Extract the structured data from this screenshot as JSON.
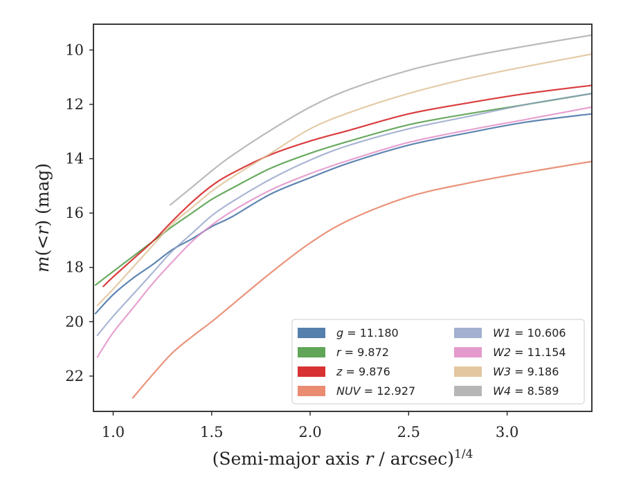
{
  "chart_data": {
    "type": "line",
    "xlabel_main": "(Semi-major axis ",
    "xlabel_var": "r",
    "xlabel_unit": " / arcsec)",
    "xlabel_exp": "1/4",
    "ylabel_pre": "m",
    "ylabel_mid": "(<",
    "ylabel_var": "r",
    "ylabel_post": ") (mag)",
    "xlim": [
      0.9,
      3.43
    ],
    "ylim": [
      23.3,
      9.05
    ],
    "y_inverted": true,
    "x_ticks": [
      1.0,
      1.5,
      2.0,
      2.5,
      3.0
    ],
    "x_tick_labels": [
      "1.0",
      "1.5",
      "2.0",
      "2.5",
      "3.0"
    ],
    "y_ticks": [
      10,
      12,
      14,
      16,
      18,
      20,
      22
    ],
    "y_tick_labels": [
      "10",
      "12",
      "14",
      "16",
      "18",
      "20",
      "22"
    ],
    "grid": false,
    "legend_position": "bottom-right",
    "legend_columns": 2,
    "series": [
      {
        "name": "g",
        "value": "11.180",
        "color": "#4c78a8",
        "line_opacity": 0.9,
        "x": [
          0.91,
          1.0,
          1.1,
          1.2,
          1.3,
          1.4,
          1.5,
          1.6,
          1.8,
          2.0,
          2.2,
          2.5,
          2.8,
          3.1,
          3.43
        ],
        "y": [
          19.7,
          19.0,
          18.4,
          17.9,
          17.35,
          16.95,
          16.5,
          16.15,
          15.3,
          14.7,
          14.15,
          13.5,
          13.05,
          12.65,
          12.35
        ]
      },
      {
        "name": "r",
        "value": "9.872",
        "color": "#59a14f",
        "line_opacity": 0.9,
        "x": [
          0.91,
          1.0,
          1.1,
          1.2,
          1.3,
          1.4,
          1.5,
          1.6,
          1.8,
          2.0,
          2.2,
          2.5,
          2.8,
          3.1,
          3.43
        ],
        "y": [
          18.65,
          18.15,
          17.6,
          17.05,
          16.5,
          16.0,
          15.5,
          15.1,
          14.35,
          13.8,
          13.35,
          12.75,
          12.35,
          12.0,
          11.6
        ]
      },
      {
        "name": "z",
        "value": "9.876",
        "color": "#d62728",
        "line_opacity": 0.9,
        "x": [
          0.95,
          1.0,
          1.1,
          1.2,
          1.3,
          1.4,
          1.5,
          1.6,
          1.8,
          2.0,
          2.2,
          2.5,
          2.8,
          3.1,
          3.43
        ],
        "y": [
          18.7,
          18.35,
          17.7,
          17.05,
          16.3,
          15.6,
          15.0,
          14.55,
          13.85,
          13.35,
          12.95,
          12.35,
          11.95,
          11.6,
          11.3
        ]
      },
      {
        "name": "NUV",
        "value": "12.927",
        "color": "#e8866a",
        "line_opacity": 0.9,
        "x": [
          1.1,
          1.2,
          1.3,
          1.4,
          1.5,
          1.6,
          1.8,
          2.0,
          2.2,
          2.5,
          2.8,
          3.1,
          3.43
        ],
        "y": [
          22.8,
          21.95,
          21.15,
          20.55,
          20.0,
          19.4,
          18.2,
          17.1,
          16.25,
          15.4,
          14.9,
          14.5,
          14.1
        ]
      },
      {
        "name": "W1",
        "value": "10.606",
        "color": "#8c9cc4",
        "line_opacity": 0.75,
        "x": [
          0.92,
          1.0,
          1.1,
          1.2,
          1.3,
          1.4,
          1.5,
          1.6,
          1.8,
          2.0,
          2.2,
          2.5,
          2.8,
          3.1,
          3.43
        ],
        "y": [
          20.5,
          19.8,
          19.0,
          18.2,
          17.4,
          16.75,
          16.1,
          15.6,
          14.75,
          14.05,
          13.5,
          12.9,
          12.45,
          12.0,
          11.6
        ]
      },
      {
        "name": "W2",
        "value": "11.154",
        "color": "#e088c4",
        "line_opacity": 0.8,
        "x": [
          0.92,
          1.0,
          1.1,
          1.2,
          1.3,
          1.4,
          1.5,
          1.6,
          1.8,
          2.0,
          2.2,
          2.5,
          2.8,
          3.1,
          3.43
        ],
        "y": [
          21.3,
          20.4,
          19.5,
          18.6,
          17.8,
          17.05,
          16.45,
          15.95,
          15.15,
          14.55,
          14.05,
          13.4,
          12.95,
          12.55,
          12.1
        ]
      },
      {
        "name": "W3",
        "value": "9.186",
        "color": "#dbb98a",
        "line_opacity": 0.75,
        "x": [
          0.92,
          1.0,
          1.1,
          1.2,
          1.3,
          1.4,
          1.5,
          1.6,
          1.8,
          2.0,
          2.2,
          2.5,
          2.8,
          3.1,
          3.43
        ],
        "y": [
          19.4,
          18.8,
          18.0,
          17.2,
          16.4,
          15.8,
          15.2,
          14.7,
          13.8,
          12.9,
          12.3,
          11.6,
          11.05,
          10.6,
          10.15
        ]
      },
      {
        "name": "W4",
        "value": "8.589",
        "color": "#a9a9a9",
        "line_opacity": 0.8,
        "x": [
          1.29,
          1.4,
          1.5,
          1.6,
          1.8,
          2.0,
          2.2,
          2.5,
          2.8,
          3.1,
          3.43
        ],
        "y": [
          15.7,
          15.05,
          14.45,
          13.9,
          12.95,
          12.1,
          11.45,
          10.75,
          10.25,
          9.85,
          9.45
        ]
      }
    ]
  }
}
